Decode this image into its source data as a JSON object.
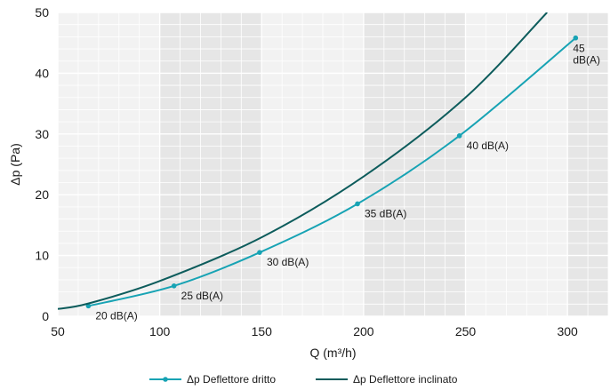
{
  "chart_data": {
    "type": "line",
    "xlabel": "Q (m³/h)",
    "ylabel": "Δp (Pa)",
    "xlim": [
      50,
      320
    ],
    "ylim": [
      0,
      50
    ],
    "xticks": [
      50,
      100,
      150,
      200,
      250,
      300
    ],
    "yticks": [
      0,
      10,
      20,
      30,
      40,
      50
    ],
    "grid": true,
    "legend_position": "bottom",
    "series": [
      {
        "name": "Δp Deflettore dritto",
        "color": "#17a3b4",
        "markers": true,
        "x": [
          65,
          107,
          149,
          197,
          247,
          304
        ],
        "y": [
          1.7,
          5.0,
          10.5,
          18.5,
          29.7,
          45.8
        ],
        "annotations": [
          "20 dB(A)",
          "25 dB(A)",
          "30 dB(A)",
          "35 dB(A)",
          "40 dB(A)",
          "45 dB(A)"
        ]
      },
      {
        "name": "Δp Deflettore inclinato",
        "color": "#0d5c5c",
        "markers": false,
        "x": [
          50,
          65,
          100,
          150,
          200,
          250,
          290
        ],
        "y": [
          1.2,
          2.1,
          5.8,
          13.0,
          23.0,
          36.0,
          50.0
        ]
      }
    ]
  }
}
